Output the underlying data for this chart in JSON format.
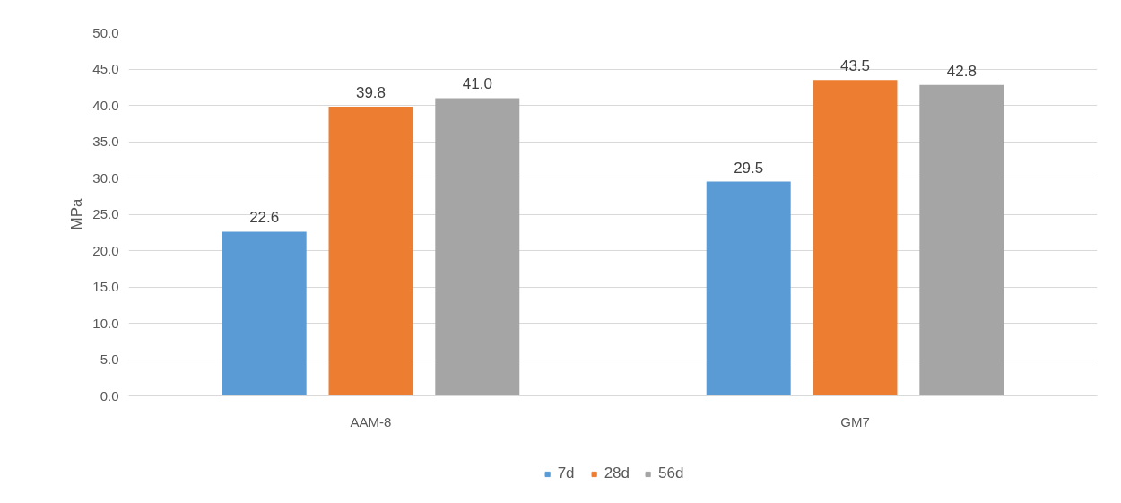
{
  "chart_data": {
    "type": "bar",
    "ylabel": "MPa",
    "categories": [
      "AAM-8",
      "GM7"
    ],
    "series": [
      {
        "name": "7d",
        "color": "#5b9bd5",
        "values": [
          22.6,
          29.5
        ],
        "value_labels": [
          "22.6",
          "29.5"
        ]
      },
      {
        "name": "28d",
        "color": "#ed7d31",
        "values": [
          39.8,
          43.5
        ],
        "value_labels": [
          "39.8",
          "43.5"
        ]
      },
      {
        "name": "56d",
        "color": "#a5a5a5",
        "values": [
          41.0,
          42.8
        ],
        "value_labels": [
          "41.0",
          "42.8"
        ]
      }
    ],
    "ylim": [
      0,
      50
    ],
    "yticks": [
      {
        "value": 0,
        "label": "0.0"
      },
      {
        "value": 5,
        "label": "5.0"
      },
      {
        "value": 10,
        "label": "10.0"
      },
      {
        "value": 15,
        "label": "15.0"
      },
      {
        "value": 20,
        "label": "20.0"
      },
      {
        "value": 25,
        "label": "25.0"
      },
      {
        "value": 30,
        "label": "30.0"
      },
      {
        "value": 35,
        "label": "35.0"
      },
      {
        "value": 40,
        "label": "40.0"
      },
      {
        "value": 45,
        "label": "45.0"
      },
      {
        "value": 50,
        "label": "50.0"
      }
    ],
    "grid": "y",
    "legend": "bottom"
  }
}
